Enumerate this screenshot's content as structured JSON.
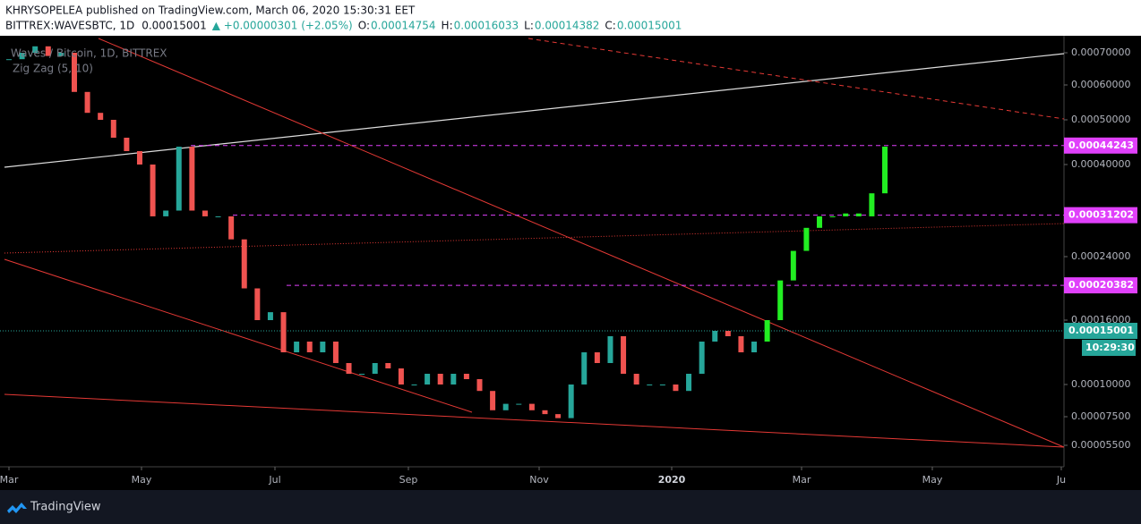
{
  "chart_data": {
    "type": "candlestick",
    "header": {
      "publisher": "KHRYSOPELEA published on TradingView.com, March 06, 2020 15:30:31 EET",
      "symbol": "BITTREX:WAVESBTC, 1D",
      "last": "0.00015001",
      "change": "▲ +0.00000301 (+2.05%)",
      "ohlc": [
        {
          "label": "O:",
          "value": "0.00014754"
        },
        {
          "label": "H:",
          "value": "0.00016033"
        },
        {
          "label": "L:",
          "value": "0.00014382"
        },
        {
          "label": "C:",
          "value": "0.00015001"
        }
      ]
    },
    "indicator": "Zig Zag (5, 10)",
    "series": [
      {
        "name": "Waves / Bitcoin, 1D, BITTREX",
        "up_color": "#26a69a",
        "down_color": "#ef5350",
        "projection_color": "#22ee22",
        "values": [
          0.00068,
          0.0007,
          0.00072,
          0.00069,
          0.0007,
          0.00058,
          0.00052,
          0.0005,
          0.00046,
          0.00043,
          0.0004,
          0.00031,
          0.00032,
          0.00044,
          0.00032,
          0.00031,
          0.00031,
          0.00027,
          0.0002,
          0.00016,
          0.00017,
          0.00013,
          0.00014,
          0.00013,
          0.00014,
          0.00012,
          0.00011,
          0.00011,
          0.00012,
          0.000115,
          0.0001,
          0.0001,
          0.00011,
          0.0001,
          0.00011,
          0.000105,
          9.5e-05,
          8e-05,
          8.5e-05,
          8.5e-05,
          8e-05,
          7.7e-05,
          7.4e-05,
          0.0001,
          0.00013,
          0.00012,
          0.000145,
          0.00011,
          0.0001,
          0.0001,
          0.0001,
          9.5e-05,
          0.00011,
          0.00014,
          0.00015,
          0.000145,
          0.00013,
          0.00014,
          0.00016,
          0.00021,
          0.00025,
          0.00029,
          0.00031,
          0.00031,
          0.000315,
          0.00031,
          0.00035,
          0.00044
        ]
      }
    ],
    "yticks": [
      {
        "value": 0.0007,
        "label": "0.00070000"
      },
      {
        "value": 0.0006,
        "label": "0.00060000"
      },
      {
        "value": 0.0005,
        "label": "0.00050000"
      },
      {
        "value": 0.0004,
        "label": "0.00040000"
      },
      {
        "value": 0.00024,
        "label": "0.00024000"
      },
      {
        "value": 0.00016,
        "label": "0.00016000"
      },
      {
        "value": 0.0001,
        "label": "0.00010000"
      },
      {
        "value": 7.5e-05,
        "label": "0.00007500"
      },
      {
        "value": 5.5e-05,
        "label": "0.00005500"
      }
    ],
    "xtick_labels": [
      "Mar",
      "May",
      "Jul",
      "Sep",
      "Nov",
      "2020",
      "Mar",
      "May",
      "Ju"
    ],
    "levels": [
      {
        "value": 0.00044243,
        "label": "0.00044243"
      },
      {
        "value": 0.00031202,
        "label": "0.00031202"
      },
      {
        "value": 0.00020382,
        "label": "0.00020382"
      }
    ],
    "last_price": {
      "value": 0.00015001,
      "label": "0.00015001",
      "countdown": "10:29:30"
    },
    "level_color": "#e040fb",
    "footer": "TradingView"
  }
}
